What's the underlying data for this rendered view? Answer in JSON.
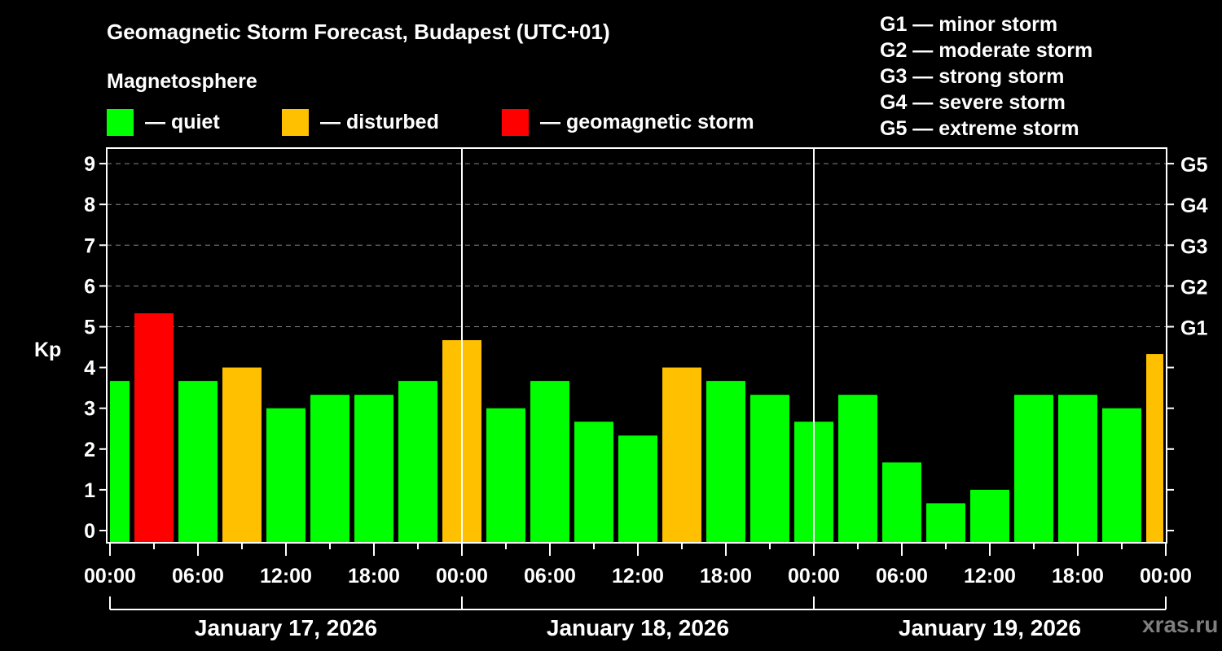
{
  "header": {
    "title": "Geomagnetic Storm Forecast, Budapest (UTC+01)",
    "subtitle": "Magnetosphere"
  },
  "legend": [
    {
      "label": "— quiet",
      "color": "#00ff00"
    },
    {
      "label": "— disturbed",
      "color": "#ffc000"
    },
    {
      "label": "— geomagnetic storm",
      "color": "#ff0000"
    }
  ],
  "g_scale": [
    "G1 — minor storm",
    "G2 — moderate storm",
    "G3 — strong storm",
    "G4 — severe storm",
    "G5 — extreme storm"
  ],
  "watermark": "xras.ru",
  "chart_data": {
    "type": "bar",
    "title": "Geomagnetic Storm Forecast, Budapest (UTC+01)",
    "xlabel": "",
    "ylabel": "Kp",
    "ylim": [
      0,
      9
    ],
    "yticks": [
      0,
      1,
      2,
      3,
      4,
      5,
      6,
      7,
      8,
      9
    ],
    "right_axis_labels": [
      {
        "kp": 5,
        "label": "G1"
      },
      {
        "kp": 6,
        "label": "G2"
      },
      {
        "kp": 7,
        "label": "G3"
      },
      {
        "kp": 8,
        "label": "G4"
      },
      {
        "kp": 9,
        "label": "G5"
      }
    ],
    "grid": "dashed horizontal at Kp 5-9",
    "xtick_labels": [
      "00:00",
      "06:00",
      "12:00",
      "18:00",
      "00:00",
      "06:00",
      "12:00",
      "18:00",
      "00:00",
      "06:00",
      "12:00",
      "18:00",
      "00:00"
    ],
    "days": [
      "January 17, 2026",
      "January 18, 2026",
      "January 19, 2026"
    ],
    "bar_interval_hours": 3,
    "categories": [
      "Jan17 ~00",
      "Jan17 ~03",
      "Jan17 ~06",
      "Jan17 ~09",
      "Jan17 ~12",
      "Jan17 ~15",
      "Jan17 ~18",
      "Jan17 ~21",
      "Jan18 ~00",
      "Jan18 ~03",
      "Jan18 ~06",
      "Jan18 ~09",
      "Jan18 ~12",
      "Jan18 ~15",
      "Jan18 ~18",
      "Jan18 ~21",
      "Jan19 ~00",
      "Jan19 ~03",
      "Jan19 ~06",
      "Jan19 ~09",
      "Jan19 ~12",
      "Jan19 ~15",
      "Jan19 ~18",
      "Jan19 ~21",
      "Jan20 ~00"
    ],
    "values": [
      3.67,
      5.33,
      3.67,
      4.0,
      3.0,
      3.33,
      3.33,
      3.67,
      4.67,
      3.0,
      3.67,
      2.67,
      2.33,
      4.0,
      3.67,
      3.33,
      2.67,
      3.33,
      1.67,
      0.67,
      1.0,
      3.33,
      3.33,
      3.0,
      4.33
    ],
    "status": [
      "quiet",
      "storm",
      "quiet",
      "disturbed",
      "quiet",
      "quiet",
      "quiet",
      "quiet",
      "disturbed",
      "quiet",
      "quiet",
      "quiet",
      "quiet",
      "disturbed",
      "quiet",
      "quiet",
      "quiet",
      "quiet",
      "quiet",
      "quiet",
      "quiet",
      "quiet",
      "quiet",
      "quiet",
      "disturbed"
    ],
    "colors": {
      "quiet": "#00ff00",
      "disturbed": "#ffc000",
      "storm": "#ff0000"
    }
  }
}
